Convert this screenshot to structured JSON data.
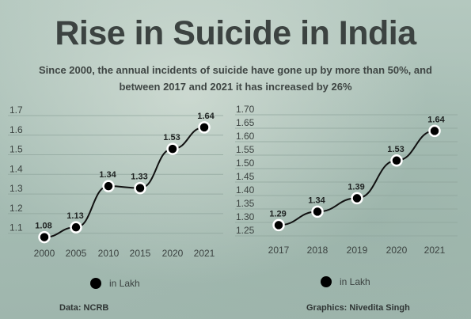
{
  "title": "Rise in Suicide in India",
  "subtitle": "Since 2000, the annual incidents of suicide have gone up by more than 50%, and between 2017 and 2021 it has increased by 26%",
  "footer": {
    "source": "Data: NCRB",
    "credit": "Graphics: Nivedita Singh"
  },
  "colors": {
    "line": "#111111",
    "marker_fill": "#000000",
    "marker_stroke": "#ffffff",
    "grid": "#8ea49b",
    "text": "#3c4341"
  },
  "chart_data": [
    {
      "type": "line",
      "x": [
        "2000",
        "2005",
        "2010",
        "2015",
        "2020",
        "2021"
      ],
      "series": [
        {
          "name": "in Lakh",
          "values": [
            1.08,
            1.13,
            1.34,
            1.33,
            1.53,
            1.64
          ]
        }
      ],
      "data_labels": [
        "1.08",
        "1.13",
        "1.34",
        "1.33",
        "1.53",
        "1.64"
      ],
      "yticks": [
        "1.1",
        "1.2",
        "1.3",
        "1.4",
        "1.5",
        "1.6",
        "1.7"
      ],
      "ylim": [
        1.05,
        1.7
      ],
      "grid": true,
      "legend": "bottom"
    },
    {
      "type": "line",
      "x": [
        "2017",
        "2018",
        "2019",
        "2020",
        "2021"
      ],
      "series": [
        {
          "name": "in Lakh",
          "values": [
            1.29,
            1.34,
            1.39,
            1.53,
            1.64
          ]
        }
      ],
      "data_labels": [
        "1.29",
        "1.34",
        "1.39",
        "1.53",
        "1.64"
      ],
      "yticks": [
        "1.25",
        "1.30",
        "1.35",
        "1.40",
        "1.45",
        "1.50",
        "1.55",
        "1.60",
        "1.65",
        "1.70"
      ],
      "ylim": [
        1.25,
        1.7
      ],
      "grid": true,
      "legend": "bottom"
    }
  ]
}
